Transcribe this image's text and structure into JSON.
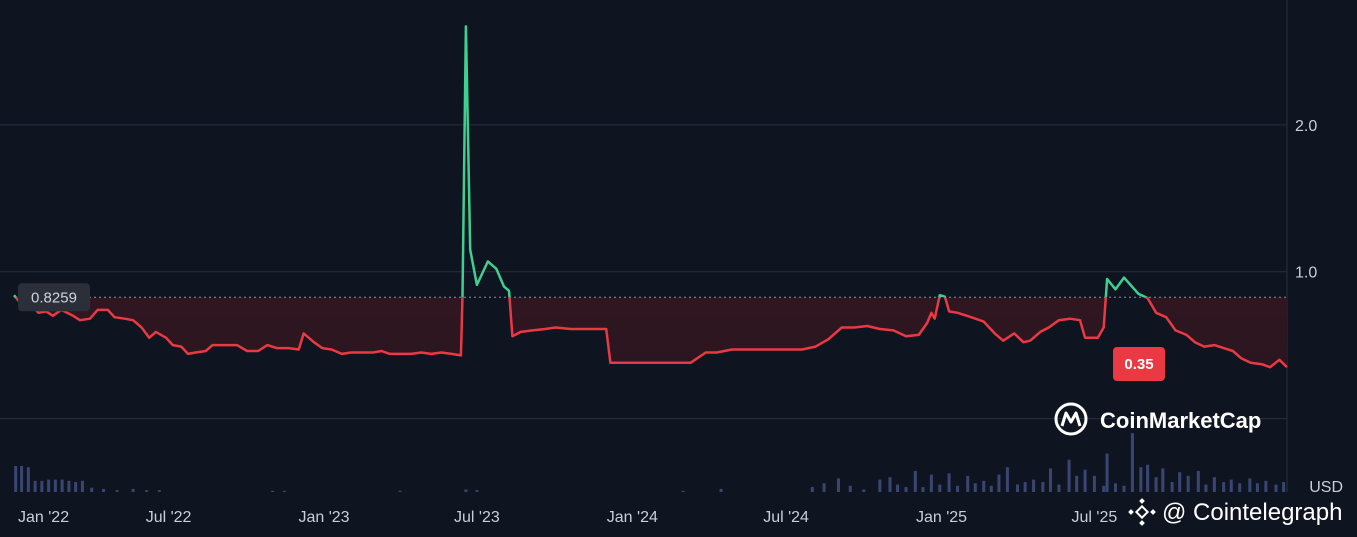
{
  "chart_data": {
    "type": "area",
    "currency_label": "USD",
    "baseline_value": 0.8259,
    "baseline_label": "0.8259",
    "current_value": 0.35,
    "current_label": "0.35",
    "colors": {
      "above": "#3fcf8e",
      "below": "#ea3943",
      "below_fill": "#4a1c24",
      "grid": "#2a2f3c",
      "volume": "#3a4672",
      "current_tag": "#ea3943"
    },
    "ylim": [
      -0.5,
      2.85
    ],
    "y_ticks": [
      {
        "value": 1.0,
        "label": "1.0"
      },
      {
        "value": 2.0,
        "label": "2.0"
      }
    ],
    "x_range": [
      "2022-01-01",
      "2025-12-31"
    ],
    "x_ticks": [
      {
        "date": "2022-01-01",
        "label": "Jan '22"
      },
      {
        "date": "2022-07-01",
        "label": "Jul '22"
      },
      {
        "date": "2023-01-01",
        "label": "Jan '23"
      },
      {
        "date": "2023-07-01",
        "label": "Jul '23"
      },
      {
        "date": "2024-01-01",
        "label": "Jan '24"
      },
      {
        "date": "2024-07-01",
        "label": "Jul '24"
      },
      {
        "date": "2025-01-01",
        "label": "Jan '25"
      },
      {
        "date": "2025-07-01",
        "label": "Jul '25"
      }
    ],
    "series": [
      {
        "points": [
          [
            "2021-12-30",
            0.84
          ],
          [
            "2022-01-06",
            0.79
          ],
          [
            "2022-01-18",
            0.78
          ],
          [
            "2022-01-28",
            0.72
          ],
          [
            "2022-02-06",
            0.73
          ],
          [
            "2022-02-14",
            0.7
          ],
          [
            "2022-02-24",
            0.74
          ],
          [
            "2022-03-10",
            0.7
          ],
          [
            "2022-03-18",
            0.67
          ],
          [
            "2022-03-30",
            0.68
          ],
          [
            "2022-04-08",
            0.74
          ],
          [
            "2022-04-20",
            0.74
          ],
          [
            "2022-04-28",
            0.69
          ],
          [
            "2022-05-10",
            0.68
          ],
          [
            "2022-05-20",
            0.67
          ],
          [
            "2022-05-30",
            0.62
          ],
          [
            "2022-06-08",
            0.55
          ],
          [
            "2022-06-16",
            0.59
          ],
          [
            "2022-06-28",
            0.55
          ],
          [
            "2022-07-06",
            0.5
          ],
          [
            "2022-07-16",
            0.49
          ],
          [
            "2022-07-24",
            0.44
          ],
          [
            "2022-08-02",
            0.45
          ],
          [
            "2022-08-14",
            0.46
          ],
          [
            "2022-08-22",
            0.5
          ],
          [
            "2022-09-05",
            0.5
          ],
          [
            "2022-09-20",
            0.5
          ],
          [
            "2022-10-02",
            0.46
          ],
          [
            "2022-10-15",
            0.46
          ],
          [
            "2022-10-26",
            0.5
          ],
          [
            "2022-11-06",
            0.48
          ],
          [
            "2022-11-20",
            0.48
          ],
          [
            "2022-12-02",
            0.47
          ],
          [
            "2022-12-08",
            0.58
          ],
          [
            "2022-12-20",
            0.52
          ],
          [
            "2022-12-30",
            0.48
          ],
          [
            "2023-01-10",
            0.47
          ],
          [
            "2023-01-22",
            0.44
          ],
          [
            "2023-02-02",
            0.45
          ],
          [
            "2023-02-15",
            0.45
          ],
          [
            "2023-02-28",
            0.45
          ],
          [
            "2023-03-10",
            0.46
          ],
          [
            "2023-03-20",
            0.44
          ],
          [
            "2023-04-02",
            0.44
          ],
          [
            "2023-04-14",
            0.44
          ],
          [
            "2023-04-26",
            0.45
          ],
          [
            "2023-05-08",
            0.44
          ],
          [
            "2023-05-20",
            0.45
          ],
          [
            "2023-06-01",
            0.44
          ],
          [
            "2023-06-12",
            0.43
          ],
          [
            "2023-06-14",
            0.83
          ],
          [
            "2023-06-18",
            2.67
          ],
          [
            "2023-06-23",
            1.15
          ],
          [
            "2023-07-01",
            0.91
          ],
          [
            "2023-07-14",
            1.07
          ],
          [
            "2023-07-24",
            1.02
          ],
          [
            "2023-08-02",
            0.9
          ],
          [
            "2023-08-08",
            0.87
          ],
          [
            "2023-08-12",
            0.56
          ],
          [
            "2023-08-22",
            0.59
          ],
          [
            "2023-09-05",
            0.6
          ],
          [
            "2023-09-20",
            0.61
          ],
          [
            "2023-10-02",
            0.62
          ],
          [
            "2023-10-20",
            0.61
          ],
          [
            "2023-11-05",
            0.61
          ],
          [
            "2023-11-20",
            0.61
          ],
          [
            "2023-12-01",
            0.61
          ],
          [
            "2023-12-06",
            0.38
          ],
          [
            "2024-01-05",
            0.38
          ],
          [
            "2024-01-30",
            0.38
          ],
          [
            "2024-02-20",
            0.38
          ],
          [
            "2024-03-10",
            0.38
          ],
          [
            "2024-03-28",
            0.45
          ],
          [
            "2024-04-10",
            0.45
          ],
          [
            "2024-04-28",
            0.47
          ],
          [
            "2024-05-20",
            0.47
          ],
          [
            "2024-06-10",
            0.47
          ],
          [
            "2024-06-30",
            0.47
          ],
          [
            "2024-07-20",
            0.47
          ],
          [
            "2024-08-05",
            0.49
          ],
          [
            "2024-08-20",
            0.54
          ],
          [
            "2024-09-05",
            0.62
          ],
          [
            "2024-09-20",
            0.62
          ],
          [
            "2024-10-05",
            0.63
          ],
          [
            "2024-10-20",
            0.61
          ],
          [
            "2024-11-05",
            0.6
          ],
          [
            "2024-11-20",
            0.56
          ],
          [
            "2024-12-05",
            0.57
          ],
          [
            "2024-12-15",
            0.65
          ],
          [
            "2024-12-20",
            0.72
          ],
          [
            "2024-12-24",
            0.68
          ],
          [
            "2024-12-30",
            0.84
          ],
          [
            "2025-01-05",
            0.83
          ],
          [
            "2025-01-10",
            0.73
          ],
          [
            "2025-01-20",
            0.72
          ],
          [
            "2025-02-05",
            0.69
          ],
          [
            "2025-02-20",
            0.66
          ],
          [
            "2025-03-05",
            0.58
          ],
          [
            "2025-03-15",
            0.53
          ],
          [
            "2025-03-28",
            0.58
          ],
          [
            "2025-04-08",
            0.52
          ],
          [
            "2025-04-16",
            0.53
          ],
          [
            "2025-04-28",
            0.59
          ],
          [
            "2025-05-08",
            0.62
          ],
          [
            "2025-05-20",
            0.67
          ],
          [
            "2025-06-02",
            0.68
          ],
          [
            "2025-06-14",
            0.67
          ],
          [
            "2025-06-20",
            0.55
          ],
          [
            "2025-07-05",
            0.55
          ],
          [
            "2025-07-12",
            0.62
          ],
          [
            "2025-07-16",
            0.95
          ],
          [
            "2025-07-26",
            0.88
          ],
          [
            "2025-08-05",
            0.96
          ],
          [
            "2025-08-22",
            0.85
          ],
          [
            "2025-09-02",
            0.82
          ],
          [
            "2025-09-12",
            0.72
          ],
          [
            "2025-09-24",
            0.69
          ],
          [
            "2025-10-05",
            0.6
          ],
          [
            "2025-10-18",
            0.57
          ],
          [
            "2025-10-28",
            0.52
          ],
          [
            "2025-11-08",
            0.49
          ],
          [
            "2025-11-20",
            0.5
          ],
          [
            "2025-12-01",
            0.48
          ],
          [
            "2025-12-12",
            0.46
          ],
          [
            "2025-12-22",
            0.41
          ],
          [
            "2026-01-02",
            0.38
          ],
          [
            "2026-01-15",
            0.37
          ],
          [
            "2026-01-25",
            0.35
          ],
          [
            "2026-02-05",
            0.4
          ],
          [
            "2026-02-14",
            0.35
          ]
        ]
      }
    ],
    "volume": [
      {
        "date": "2022-01-01",
        "value": 0.42
      },
      {
        "date": "2022-01-08",
        "value": 0.42
      },
      {
        "date": "2022-01-16",
        "value": 0.4
      },
      {
        "date": "2022-01-24",
        "value": 0.18
      },
      {
        "date": "2022-02-01",
        "value": 0.18
      },
      {
        "date": "2022-02-09",
        "value": 0.2
      },
      {
        "date": "2022-02-17",
        "value": 0.2
      },
      {
        "date": "2022-02-25",
        "value": 0.2
      },
      {
        "date": "2022-03-05",
        "value": 0.18
      },
      {
        "date": "2022-03-13",
        "value": 0.16
      },
      {
        "date": "2022-03-21",
        "value": 0.18
      },
      {
        "date": "2022-04-01",
        "value": 0.07
      },
      {
        "date": "2022-04-15",
        "value": 0.05
      },
      {
        "date": "2022-05-01",
        "value": 0.03
      },
      {
        "date": "2022-05-20",
        "value": 0.05
      },
      {
        "date": "2022-06-05",
        "value": 0.03
      },
      {
        "date": "2022-06-20",
        "value": 0.03
      },
      {
        "date": "2022-11-01",
        "value": 0.02
      },
      {
        "date": "2022-11-15",
        "value": 0.02
      },
      {
        "date": "2023-04-01",
        "value": 0.02
      },
      {
        "date": "2023-06-18",
        "value": 0.04
      },
      {
        "date": "2023-07-01",
        "value": 0.03
      },
      {
        "date": "2024-03-01",
        "value": 0.02
      },
      {
        "date": "2024-04-15",
        "value": 0.05
      },
      {
        "date": "2024-08-01",
        "value": 0.08
      },
      {
        "date": "2024-08-15",
        "value": 0.14
      },
      {
        "date": "2024-09-01",
        "value": 0.22
      },
      {
        "date": "2024-09-15",
        "value": 0.1
      },
      {
        "date": "2024-10-01",
        "value": 0.04
      },
      {
        "date": "2024-10-20",
        "value": 0.2
      },
      {
        "date": "2024-11-01",
        "value": 0.24
      },
      {
        "date": "2024-11-10",
        "value": 0.12
      },
      {
        "date": "2024-11-20",
        "value": 0.08
      },
      {
        "date": "2024-12-01",
        "value": 0.34
      },
      {
        "date": "2024-12-10",
        "value": 0.08
      },
      {
        "date": "2024-12-20",
        "value": 0.28
      },
      {
        "date": "2024-12-30",
        "value": 0.12
      },
      {
        "date": "2025-01-10",
        "value": 0.3
      },
      {
        "date": "2025-01-20",
        "value": 0.1
      },
      {
        "date": "2025-02-01",
        "value": 0.26
      },
      {
        "date": "2025-02-10",
        "value": 0.14
      },
      {
        "date": "2025-02-20",
        "value": 0.18
      },
      {
        "date": "2025-03-01",
        "value": 0.1
      },
      {
        "date": "2025-03-10",
        "value": 0.28
      },
      {
        "date": "2025-03-20",
        "value": 0.4
      },
      {
        "date": "2025-04-01",
        "value": 0.12
      },
      {
        "date": "2025-04-10",
        "value": 0.16
      },
      {
        "date": "2025-04-20",
        "value": 0.2
      },
      {
        "date": "2025-05-01",
        "value": 0.16
      },
      {
        "date": "2025-05-10",
        "value": 0.38
      },
      {
        "date": "2025-05-20",
        "value": 0.12
      },
      {
        "date": "2025-06-01",
        "value": 0.52
      },
      {
        "date": "2025-06-10",
        "value": 0.26
      },
      {
        "date": "2025-06-20",
        "value": 0.36
      },
      {
        "date": "2025-07-01",
        "value": 0.26
      },
      {
        "date": "2025-07-12",
        "value": 0.1
      },
      {
        "date": "2025-07-16",
        "value": 0.62
      },
      {
        "date": "2025-07-26",
        "value": 0.14
      },
      {
        "date": "2025-08-05",
        "value": 0.1
      },
      {
        "date": "2025-08-15",
        "value": 0.95
      },
      {
        "date": "2025-08-25",
        "value": 0.4
      },
      {
        "date": "2025-09-02",
        "value": 0.44
      },
      {
        "date": "2025-09-12",
        "value": 0.24
      },
      {
        "date": "2025-09-20",
        "value": 0.38
      },
      {
        "date": "2025-10-01",
        "value": 0.16
      },
      {
        "date": "2025-10-10",
        "value": 0.32
      },
      {
        "date": "2025-10-20",
        "value": 0.26
      },
      {
        "date": "2025-11-01",
        "value": 0.34
      },
      {
        "date": "2025-11-10",
        "value": 0.12
      },
      {
        "date": "2025-11-20",
        "value": 0.24
      },
      {
        "date": "2025-12-01",
        "value": 0.16
      },
      {
        "date": "2025-12-10",
        "value": 0.2
      },
      {
        "date": "2025-12-20",
        "value": 0.14
      },
      {
        "date": "2026-01-01",
        "value": 0.22
      },
      {
        "date": "2026-01-10",
        "value": 0.14
      },
      {
        "date": "2026-01-20",
        "value": 0.18
      },
      {
        "date": "2026-02-01",
        "value": 0.12
      },
      {
        "date": "2026-02-10",
        "value": 0.16
      }
    ]
  },
  "watermarks": {
    "coinmarketcap": "CoinMarketCap",
    "cointelegraph": "@ Cointelegraph"
  }
}
